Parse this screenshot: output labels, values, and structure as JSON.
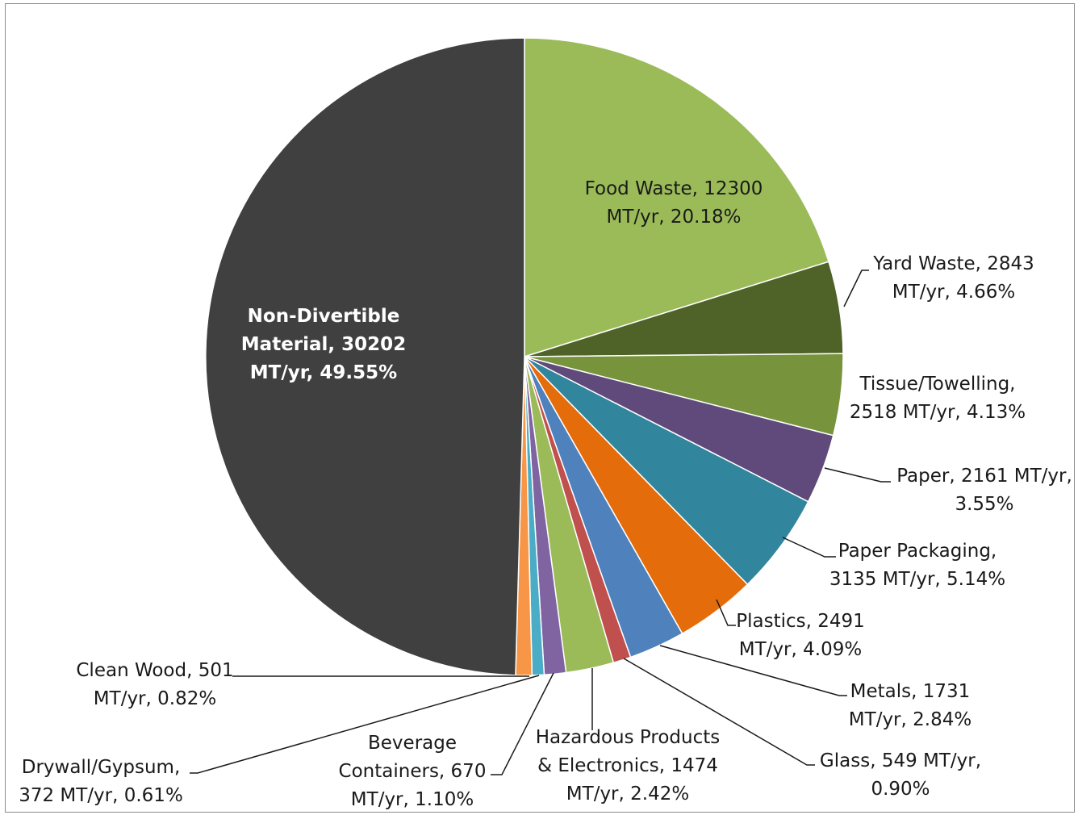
{
  "chart_data": {
    "type": "pie",
    "start_angle_deg": 0,
    "direction": "clockwise",
    "slices": [
      {
        "category": "Food Waste",
        "value": 12300,
        "percent": "20.18%",
        "color": "#9bbb59",
        "label_lines": [
          "Food Waste, 12300",
          "MT/yr, 20.18%"
        ]
      },
      {
        "category": "Yard Waste",
        "value": 2843,
        "percent": "4.66%",
        "color": "#4f6228",
        "label_lines": [
          "Yard Waste, 2843",
          "MT/yr, 4.66%"
        ]
      },
      {
        "category": "Tissue/Towelling",
        "value": 2518,
        "percent": "4.13%",
        "color": "#77933c",
        "label_lines": [
          "Tissue/Towelling,",
          "2518 MT/yr, 4.13%"
        ]
      },
      {
        "category": "Paper",
        "value": 2161,
        "percent": "3.55%",
        "color": "#604a7b",
        "label_lines": [
          "Paper, 2161 MT/yr,",
          "3.55%"
        ]
      },
      {
        "category": "Paper Packaging",
        "value": 3135,
        "percent": "5.14%",
        "color": "#31859c",
        "label_lines": [
          "Paper Packaging,",
          "3135 MT/yr, 5.14%"
        ]
      },
      {
        "category": "Plastics",
        "value": 2491,
        "percent": "4.09%",
        "color": "#e46c0a",
        "label_lines": [
          "Plastics, 2491",
          "MT/yr, 4.09%"
        ]
      },
      {
        "category": "Metals",
        "value": 1731,
        "percent": "2.84%",
        "color": "#4f81bd",
        "label_lines": [
          "Metals, 1731",
          "MT/yr, 2.84%"
        ]
      },
      {
        "category": "Glass",
        "value": 549,
        "percent": "0.90%",
        "color": "#c0504d",
        "label_lines": [
          "Glass, 549 MT/yr,",
          "0.90%"
        ]
      },
      {
        "category": "Hazardous Products & Electronics",
        "value": 1474,
        "percent": "2.42%",
        "color": "#9bbb59",
        "label_lines": [
          "Hazardous Products",
          "& Electronics, 1474",
          "MT/yr, 2.42%"
        ]
      },
      {
        "category": "Beverage Containers",
        "value": 670,
        "percent": "1.10%",
        "color": "#8064a2",
        "label_lines": [
          "Beverage",
          "Containers, 670",
          "MT/yr, 1.10%"
        ]
      },
      {
        "category": "Drywall/Gypsum",
        "value": 372,
        "percent": "0.61%",
        "color": "#4bacc6",
        "label_lines": [
          "Drywall/Gypsum,",
          "372 MT/yr, 0.61%"
        ]
      },
      {
        "category": "Clean Wood",
        "value": 501,
        "percent": "0.82%",
        "color": "#f79646",
        "label_lines": [
          "Clean Wood, 501",
          "MT/yr, 0.82%"
        ]
      },
      {
        "category": "Non-Divertible Material",
        "value": 30202,
        "percent": "49.55%",
        "color": "#404040",
        "label_lines": [
          "Non-Divertible",
          "Material, 30202",
          "MT/yr, 49.55%"
        ]
      }
    ]
  }
}
